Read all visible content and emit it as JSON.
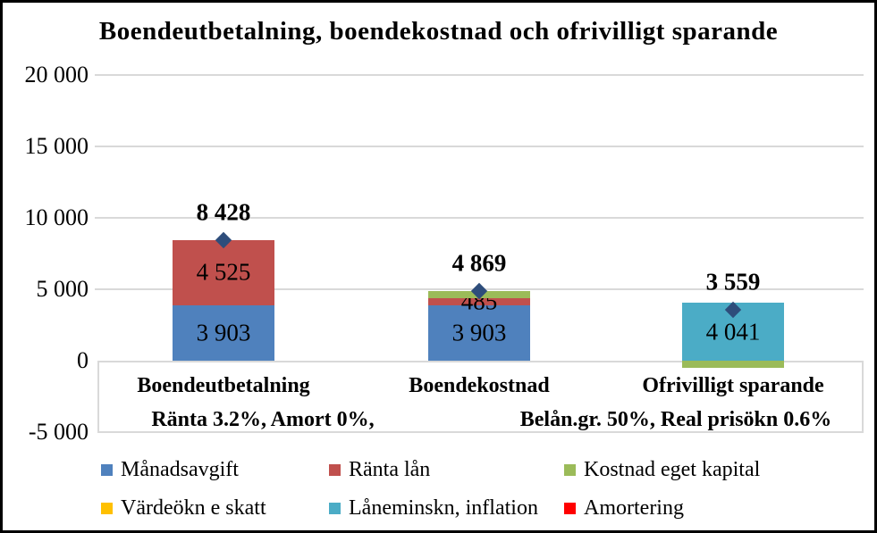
{
  "title": "Boendeutbetalning, boendekostnad och ofrivilligt sparande",
  "colors": {
    "manadsavgift_blue": "#4F81BD",
    "ranta_lan_red": "#C0504D",
    "kostnad_eget_kapital_green": "#9BBB59",
    "vardeokn_e_skatt_yellow": "#FFC000",
    "laneminskn_inflation_teal": "#4BACC6",
    "amortering_red": "#FF0000",
    "total_marker_navy": "#2E4D7B",
    "gridline_gray": "#D9D9D9",
    "text_black": "#000000"
  },
  "chart_data": {
    "type": "bar",
    "stacked": true,
    "title": "Boendeutbetalning, boendekostnad och ofrivilligt sparande",
    "categories": [
      "Boendeutbetalning",
      "Boendekostnad",
      "Ofrivilligt sparande"
    ],
    "series": [
      {
        "name": "Månadsavgift",
        "color": "#4F81BD",
        "values": [
          3903,
          3903,
          0
        ],
        "value_labels": [
          "3 903",
          "3 903",
          ""
        ]
      },
      {
        "name": "Ränta lån",
        "color": "#C0504D",
        "values": [
          4525,
          485,
          0
        ],
        "value_labels": [
          "4 525",
          "485",
          ""
        ]
      },
      {
        "name": "Kostnad eget kapital",
        "color": "#9BBB59",
        "values": [
          0,
          481,
          -482
        ],
        "value_labels": [
          "",
          "",
          ""
        ]
      },
      {
        "name": "Värdeökn e skatt",
        "color": "#FFC000",
        "values": [
          0,
          0,
          0
        ],
        "value_labels": [
          "",
          "",
          ""
        ]
      },
      {
        "name": "Låneminskn, inflation",
        "color": "#4BACC6",
        "values": [
          0,
          0,
          4041
        ],
        "value_labels": [
          "",
          "",
          "4 041"
        ]
      },
      {
        "name": "Amortering",
        "color": "#FF0000",
        "values": [
          0,
          0,
          0
        ],
        "value_labels": [
          "",
          "",
          ""
        ]
      }
    ],
    "totals": {
      "marker": "diamond",
      "marker_color": "#2E4D7B",
      "values": [
        8428,
        4869,
        3559
      ],
      "labels": [
        "8 428",
        "4 869",
        "3 559"
      ]
    },
    "y_axis": {
      "ticks": [
        20000,
        15000,
        10000,
        5000,
        0,
        -5000
      ],
      "tick_labels": [
        "20 000",
        "15 000",
        "10 000",
        "5 000",
        "0",
        "-5 000"
      ],
      "ylim": [
        -5000,
        20000
      ],
      "grid": true
    },
    "annotations": {
      "left": "Ränta 3.2%, Amort 0%,",
      "right": "Belån.gr. 50%, Real prisökn 0.6%"
    },
    "legend_position": "bottom"
  }
}
